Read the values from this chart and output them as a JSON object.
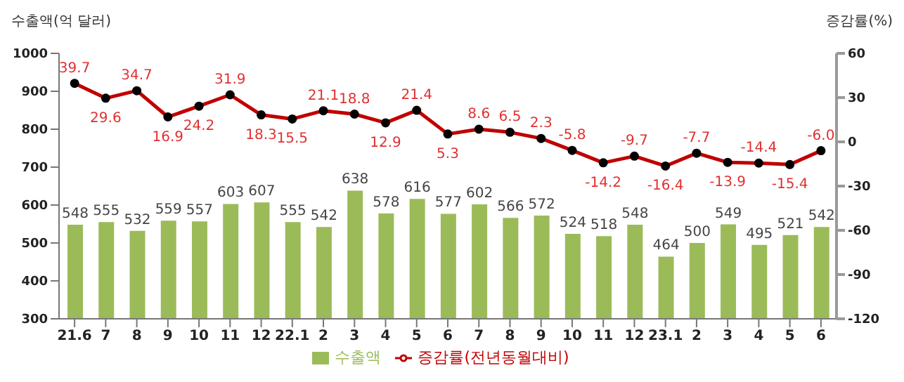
{
  "chart_data": {
    "type": "bar",
    "ylabel": "수출액(억 달러)",
    "y2label": "증감률(%)",
    "categories": [
      "21.6",
      "7",
      "8",
      "9",
      "10",
      "11",
      "12",
      "22.1",
      "2",
      "3",
      "4",
      "5",
      "6",
      "7",
      "8",
      "9",
      "10",
      "11",
      "12",
      "23.1",
      "2",
      "3",
      "4",
      "5",
      "6"
    ],
    "series": [
      {
        "name": "수출액",
        "color": "#9bbb59",
        "values": [
          548,
          555,
          532,
          559,
          557,
          603,
          607,
          555,
          542,
          638,
          578,
          616,
          577,
          602,
          566,
          572,
          524,
          518,
          548,
          464,
          500,
          549,
          495,
          521,
          542
        ]
      },
      {
        "name": "증감률(전년동월대비)",
        "type": "line",
        "axis": "y2",
        "color": "#c00000",
        "values": [
          39.7,
          29.6,
          34.7,
          16.9,
          24.2,
          31.9,
          18.3,
          15.5,
          21.1,
          18.8,
          12.9,
          21.4,
          5.3,
          8.6,
          6.5,
          2.3,
          -5.8,
          -14.2,
          -9.7,
          -16.4,
          -7.7,
          -13.9,
          -14.4,
          -15.4,
          -6.0
        ],
        "value_labels": [
          "39.7",
          "29.6",
          "34.7",
          "16.9",
          "24.2",
          "31.9",
          "18.3",
          "15.5",
          "21.1",
          "18.8",
          "12.9",
          "21.4",
          "5.3",
          "8.6",
          "6.5",
          "2.3",
          "-5.8",
          "-14.2",
          "-9.7",
          "-16.4",
          "-7.7",
          "-13.9",
          "-14.4",
          "-15.4",
          "-6.0"
        ]
      }
    ],
    "ylim": [
      300,
      1000
    ],
    "yticks": [
      300,
      400,
      500,
      600,
      700,
      800,
      900,
      1000
    ],
    "y2lim": [
      -120,
      60
    ],
    "y2ticks": [
      -120,
      -90,
      -60,
      -30,
      0,
      30,
      60
    ],
    "data_labels": true,
    "legend": "bottom",
    "grid": false,
    "marker": "circle",
    "line_style": "solid"
  }
}
